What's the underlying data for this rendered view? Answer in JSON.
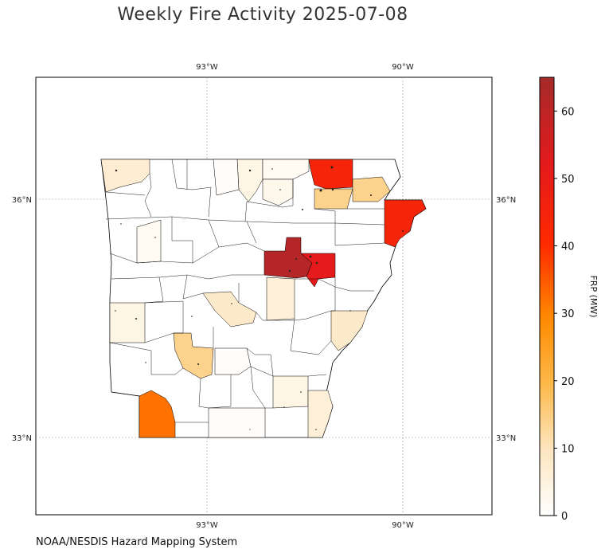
{
  "title": "Weekly Fire Activity 2025-07-08",
  "credit": "NOAA/NESDIS Hazard Mapping System",
  "map": {
    "region": "Arkansas",
    "lon_range": [
      -95.4,
      -88.4
    ],
    "lat_range": [
      32.0,
      37.7
    ],
    "lon_ticks": [
      {
        "value": -93,
        "label": "93°W"
      },
      {
        "value": -90,
        "label": "90°W"
      }
    ],
    "lat_ticks": [
      {
        "value": 36,
        "label": "36°N"
      },
      {
        "value": 33,
        "label": "33°N"
      }
    ],
    "grid": true
  },
  "colorbar": {
    "label": "FRP (MW)",
    "min": 0,
    "max": 65,
    "ticks": [
      0,
      10,
      20,
      30,
      40,
      50,
      60
    ],
    "colors": [
      "#ffffff",
      "#fde6c0",
      "#fdb94a",
      "#ff8a00",
      "#ff2a00",
      "#e41a1c",
      "#a52a2a"
    ]
  },
  "chart_data": {
    "type": "heatmap",
    "description": "County-level weekly fire radiative power choropleth",
    "value_key": "FRP (MW)",
    "highlighted_counties": [
      {
        "id": "nw-corner",
        "value": 7
      },
      {
        "id": "north-a",
        "value": 4
      },
      {
        "id": "north-b",
        "value": 2
      },
      {
        "id": "north-c",
        "value": 3
      },
      {
        "id": "north-d",
        "value": 1
      },
      {
        "id": "ne-red",
        "value": 44
      },
      {
        "id": "ne-orange-1",
        "value": 14
      },
      {
        "id": "ne-orange-2",
        "value": 14
      },
      {
        "id": "east-red",
        "value": 44
      },
      {
        "id": "central-dark",
        "value": 62
      },
      {
        "id": "central-red",
        "value": 52
      },
      {
        "id": "west-light",
        "value": 2
      },
      {
        "id": "central-light",
        "value": 6
      },
      {
        "id": "central-orange",
        "value": 8
      },
      {
        "id": "west-mid",
        "value": 4
      },
      {
        "id": "east-mid",
        "value": 8
      },
      {
        "id": "south-center",
        "value": 14
      },
      {
        "id": "south-light",
        "value": 1
      },
      {
        "id": "south-east-a",
        "value": 4
      },
      {
        "id": "south-east-b",
        "value": 6
      },
      {
        "id": "sw-orange",
        "value": 32
      },
      {
        "id": "south-strip",
        "value": 1
      }
    ]
  }
}
